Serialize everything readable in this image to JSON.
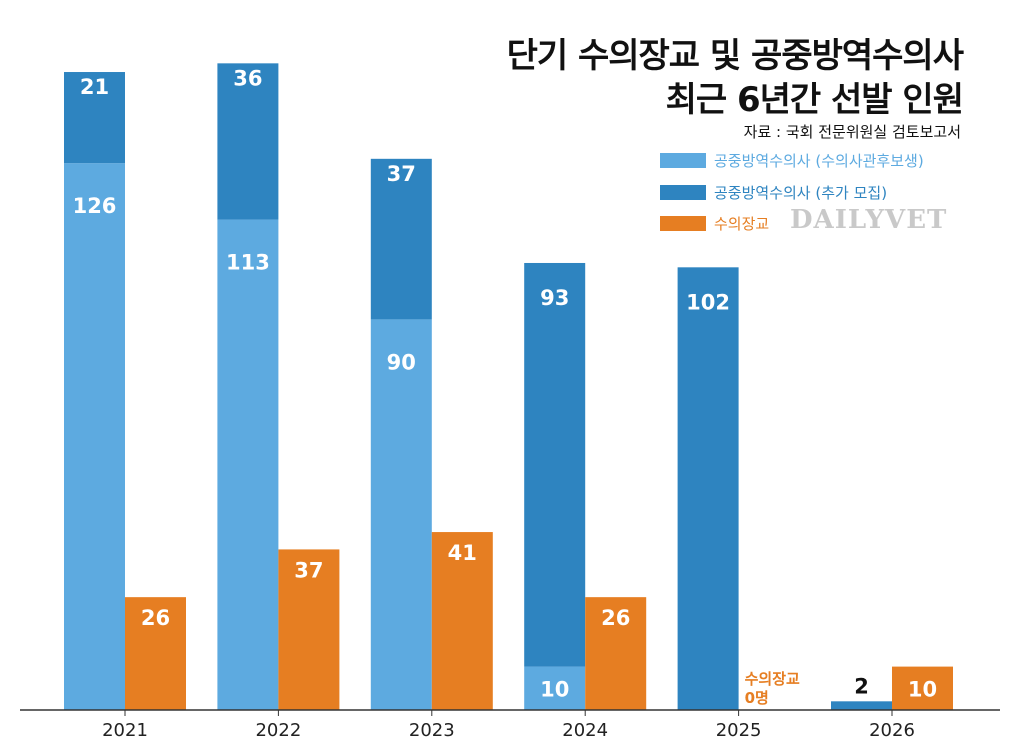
{
  "title_line1": "단기 수의장교 및 공중방역수의사",
  "title_line2": "최근 6년간 선발 인원",
  "source": "자료 : 국회 전문위원실 검토보고서",
  "watermark": "DAILYVET",
  "annotation_2025": [
    "수의장교",
    "0명"
  ],
  "colors": {
    "light_blue": "#5DAAE0",
    "dark_blue": "#2E84C0",
    "orange": "#E67E22",
    "axis": "#333333"
  },
  "chart_data": {
    "type": "bar",
    "stacked_group": [
      "공중방역수의사 (수의사관후보생)",
      "공중방역수의사 (추가 모집)"
    ],
    "categories": [
      "2021",
      "2022",
      "2023",
      "2024",
      "2025",
      "2026"
    ],
    "series": [
      {
        "name": "공중방역수의사 (수의사관후보생)",
        "color": "#5DAAE0",
        "values": [
          126,
          113,
          90,
          10,
          0,
          0
        ],
        "labels": [
          "126",
          "113",
          "90",
          "10",
          "",
          ""
        ]
      },
      {
        "name": "공중방역수의사 (추가 모집)",
        "color": "#2E84C0",
        "values": [
          21,
          36,
          37,
          93,
          102,
          2
        ],
        "labels": [
          "21",
          "36",
          "37",
          "93",
          "102",
          "2"
        ]
      },
      {
        "name": "수의장교",
        "color": "#E67E22",
        "values": [
          26,
          37,
          41,
          26,
          0,
          10
        ],
        "labels": [
          "26",
          "37",
          "41",
          "26",
          "",
          "10"
        ]
      }
    ],
    "legend": [
      "공중방역수의사 (수의사관후보생)",
      "공중방역수의사 (추가 모집)",
      "수의장교"
    ],
    "legend_position": "top-right",
    "ylim": [
      0,
      150
    ],
    "grid": false
  }
}
